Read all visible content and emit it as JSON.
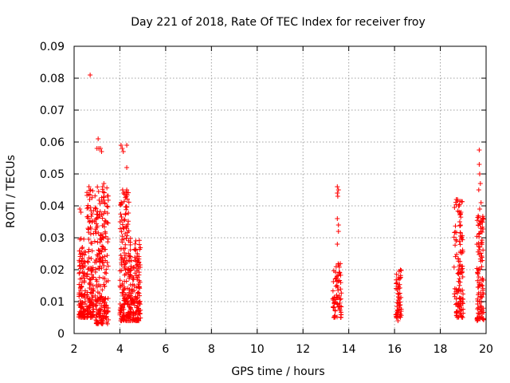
{
  "chart_data": {
    "type": "scatter",
    "title": "Day 221 of 2018, Rate Of TEC Index for receiver froy",
    "xlabel": "GPS time / hours",
    "ylabel": "ROTI / TECUs",
    "xlim": [
      2,
      20
    ],
    "ylim": [
      0,
      0.09
    ],
    "xticks": [
      2,
      4,
      6,
      8,
      10,
      12,
      14,
      16,
      18,
      20
    ],
    "yticks": [
      0,
      0.01,
      0.02,
      0.03,
      0.04,
      0.05,
      0.06,
      0.07,
      0.08,
      0.09
    ],
    "xtick_labels": [
      "2",
      "4",
      "6",
      "8",
      "10",
      "12",
      "14",
      "16",
      "18",
      "20"
    ],
    "ytick_labels": [
      "0",
      "0.01",
      "0.02",
      "0.03",
      "0.04",
      "0.05",
      "0.06",
      "0.07",
      "0.08",
      "0.09"
    ],
    "grid": true,
    "marker": "+",
    "marker_color": "#ff0000",
    "series": [
      {
        "name": "ROTI",
        "clusters": [
          {
            "x_range": [
              2.2,
              2.5
            ],
            "y_range": [
              0.005,
              0.03
            ],
            "count": 110
          },
          {
            "x_range": [
              2.55,
              2.85
            ],
            "y_range": [
              0.005,
              0.045
            ],
            "count": 120
          },
          {
            "x_range": [
              2.9,
              3.5
            ],
            "y_range": [
              0.003,
              0.046
            ],
            "count": 220
          },
          {
            "x_range": [
              4.0,
              4.4
            ],
            "y_range": [
              0.004,
              0.045
            ],
            "count": 160
          },
          {
            "x_range": [
              4.4,
              4.9
            ],
            "y_range": [
              0.004,
              0.03
            ],
            "count": 170
          },
          {
            "x_range": [
              13.3,
              13.7
            ],
            "y_range": [
              0.005,
              0.023
            ],
            "count": 70
          },
          {
            "x_range": [
              16.05,
              16.3
            ],
            "y_range": [
              0.005,
              0.02
            ],
            "count": 55
          },
          {
            "x_range": [
              18.6,
              19.0
            ],
            "y_range": [
              0.005,
              0.042
            ],
            "count": 120
          },
          {
            "x_range": [
              19.6,
              19.9
            ],
            "y_range": [
              0.004,
              0.037
            ],
            "count": 110
          }
        ],
        "points": [
          [
            2.25,
            0.039
          ],
          [
            2.3,
            0.038
          ],
          [
            2.7,
            0.081
          ],
          [
            2.65,
            0.046
          ],
          [
            2.72,
            0.045
          ],
          [
            2.68,
            0.042
          ],
          [
            3.05,
            0.061
          ],
          [
            3.0,
            0.058
          ],
          [
            3.08,
            0.058
          ],
          [
            3.15,
            0.058
          ],
          [
            3.2,
            0.057
          ],
          [
            3.25,
            0.046
          ],
          [
            3.3,
            0.047
          ],
          [
            4.05,
            0.059
          ],
          [
            4.1,
            0.058
          ],
          [
            4.15,
            0.057
          ],
          [
            4.3,
            0.059
          ],
          [
            4.12,
            0.045
          ],
          [
            4.3,
            0.045
          ],
          [
            4.3,
            0.052
          ],
          [
            4.25,
            0.0375
          ],
          [
            13.5,
            0.046
          ],
          [
            13.55,
            0.045
          ],
          [
            13.5,
            0.044
          ],
          [
            13.52,
            0.043
          ],
          [
            13.5,
            0.036
          ],
          [
            13.55,
            0.034
          ],
          [
            13.55,
            0.032
          ],
          [
            13.5,
            0.028
          ],
          [
            16.15,
            0.004
          ],
          [
            16.2,
            0.0195
          ],
          [
            18.7,
            0.042
          ],
          [
            18.75,
            0.042
          ],
          [
            18.82,
            0.04
          ],
          [
            18.9,
            0.038
          ],
          [
            18.85,
            0.035
          ],
          [
            19.7,
            0.0575
          ],
          [
            19.7,
            0.053
          ],
          [
            19.72,
            0.05
          ],
          [
            19.75,
            0.047
          ],
          [
            19.68,
            0.045
          ],
          [
            19.78,
            0.041
          ],
          [
            19.72,
            0.039
          ],
          [
            19.8,
            0.035
          ]
        ]
      }
    ]
  }
}
